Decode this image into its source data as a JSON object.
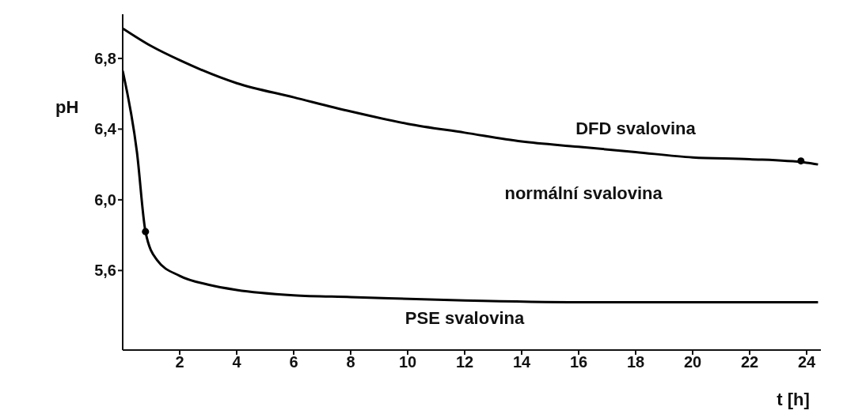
{
  "chart_data": {
    "type": "line",
    "xlabel": "t [h]",
    "ylabel": "pH",
    "xlim": [
      0,
      24.5
    ],
    "ylim": [
      5.15,
      7.05
    ],
    "xticks": [
      2,
      4,
      6,
      8,
      10,
      12,
      14,
      16,
      18,
      20,
      22,
      24
    ],
    "yticks": [
      {
        "value": 5.6,
        "label": "5,6"
      },
      {
        "value": 6.0,
        "label": "6,0"
      },
      {
        "value": 6.4,
        "label": "6,4"
      },
      {
        "value": 6.8,
        "label": "6,8"
      }
    ],
    "grid": false,
    "marker": "none",
    "line_style": "solid",
    "annotations": [
      "normální svalovina"
    ],
    "series": [
      {
        "name": "DFD svalovina",
        "color": "#000000",
        "x": [
          0,
          1,
          2,
          4,
          6,
          8,
          10,
          12,
          14,
          16,
          18,
          20,
          22,
          24,
          24.4
        ],
        "values": [
          6.97,
          6.87,
          6.79,
          6.66,
          6.58,
          6.5,
          6.43,
          6.38,
          6.33,
          6.3,
          6.27,
          6.24,
          6.23,
          6.21,
          6.2
        ]
      },
      {
        "name": "PSE svalovina",
        "color": "#000000",
        "x": [
          0,
          0.5,
          0.8,
          1.2,
          2,
          3,
          4,
          6,
          8,
          12,
          16,
          20,
          24,
          24.4
        ],
        "values": [
          6.73,
          6.27,
          5.82,
          5.66,
          5.57,
          5.52,
          5.49,
          5.46,
          5.45,
          5.43,
          5.42,
          5.42,
          5.42,
          5.42
        ]
      },
      {
        "type": "scatter",
        "color": "#000000",
        "marker": "circle",
        "x": [
          0.8,
          23.8
        ],
        "values": [
          5.82,
          6.22
        ]
      }
    ]
  }
}
